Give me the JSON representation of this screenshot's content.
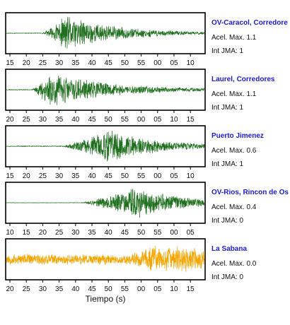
{
  "colors": {
    "trace": "#1f6f1f",
    "trace_last": "#f5a500",
    "station": "#1a1adc",
    "frame": "#000000"
  },
  "chart_data": {
    "type": "line",
    "xlabel": "Tiempo (s)",
    "panels": [
      {
        "station": "OV-Caracol, Corredore",
        "acel_label": "Acel. Max. 1.1",
        "int_label": "Int JMA: 1",
        "ticks": [
          "15",
          "20",
          "25",
          "30",
          "35",
          "40",
          "45",
          "50",
          "55",
          "00",
          "05",
          "10"
        ],
        "onset": 0.18,
        "peak": 0.3,
        "noise": 0.015,
        "amp": 1.0,
        "decay": 0.26,
        "seed": 11
      },
      {
        "station": "Laurel, Corredores",
        "acel_label": "Acel. Max. 1.1",
        "int_label": "Int JMA: 1",
        "ticks": [
          "20",
          "25",
          "30",
          "35",
          "40",
          "45",
          "50",
          "55",
          "00",
          "05",
          "10",
          "15"
        ],
        "onset": 0.13,
        "peak": 0.22,
        "noise": 0.02,
        "amp": 1.0,
        "decay": 0.3,
        "seed": 23
      },
      {
        "station": "Puerto Jimenez",
        "acel_label": "Acel. Max. 0.6",
        "int_label": "Int JMA: 1",
        "ticks": [
          "15",
          "20",
          "25",
          "30",
          "35",
          "40",
          "45",
          "50",
          "55",
          "00",
          "05",
          "10"
        ],
        "onset": 0.28,
        "peak": 0.52,
        "noise": 0.02,
        "amp": 0.95,
        "decay": 0.24,
        "seed": 37
      },
      {
        "station": "OV-Rios, Rincon de Os",
        "acel_label": "Acel. Max. 0.4",
        "int_label": "Int JMA: 0",
        "ticks": [
          "10",
          "15",
          "20",
          "25",
          "30",
          "35",
          "40",
          "45",
          "50",
          "55",
          "00",
          "05"
        ],
        "onset": 0.38,
        "peak": 0.66,
        "noise": 0.01,
        "amp": 0.9,
        "decay": 0.22,
        "seed": 41
      },
      {
        "station": "La Sabana",
        "acel_label": "Acel. Max. 0.0",
        "int_label": "Int JMA: 0",
        "ticks": [
          "20",
          "25",
          "30",
          "35",
          "40",
          "45",
          "50",
          "55",
          "00",
          "05",
          "10",
          "15"
        ],
        "onset": 0.62,
        "peak": 0.75,
        "noise": 0.3,
        "amp": 0.8,
        "decay": 0.6,
        "seed": 53
      }
    ]
  }
}
